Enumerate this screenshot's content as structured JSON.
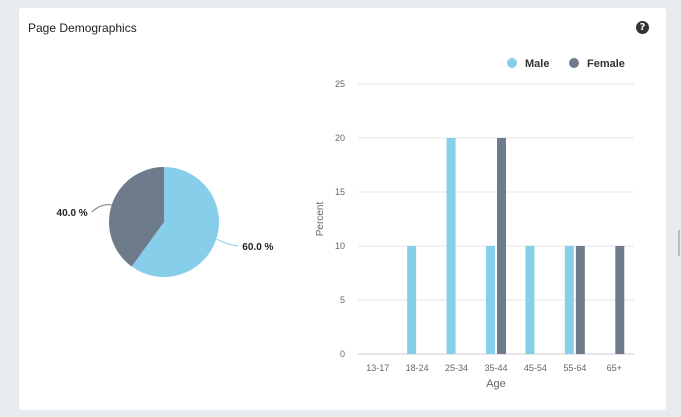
{
  "panel": {
    "title": "Page Demographics",
    "help_icon": "question-circle-icon",
    "help_glyph": "?"
  },
  "colors": {
    "male": "#87ceeb",
    "female": "#6e7b8b",
    "grid": "#e6e6e6",
    "axis": "#cccccc",
    "text": "#666666"
  },
  "chart_data": [
    {
      "type": "pie",
      "slices": [
        {
          "label": "60.0 %",
          "value": 60.0,
          "color": "#87ceeb"
        },
        {
          "label": "40.0 %",
          "value": 40.0,
          "color": "#6e7b8b"
        }
      ]
    },
    {
      "type": "bar",
      "categories": [
        "13-17",
        "18-24",
        "25-34",
        "35-44",
        "45-54",
        "55-64",
        "65+"
      ],
      "series": [
        {
          "name": "Male",
          "values": [
            0,
            10,
            20,
            10,
            10,
            10,
            0
          ],
          "color": "#87ceeb"
        },
        {
          "name": "Female",
          "values": [
            0,
            0,
            0,
            20,
            0,
            10,
            10
          ],
          "color": "#6e7b8b"
        }
      ],
      "xlabel": "Age",
      "ylabel": "Percent",
      "ylim": [
        0,
        25
      ],
      "yticks": [
        0,
        5,
        10,
        15,
        20,
        25
      ],
      "grid": true,
      "legend_position": "top-right"
    }
  ]
}
